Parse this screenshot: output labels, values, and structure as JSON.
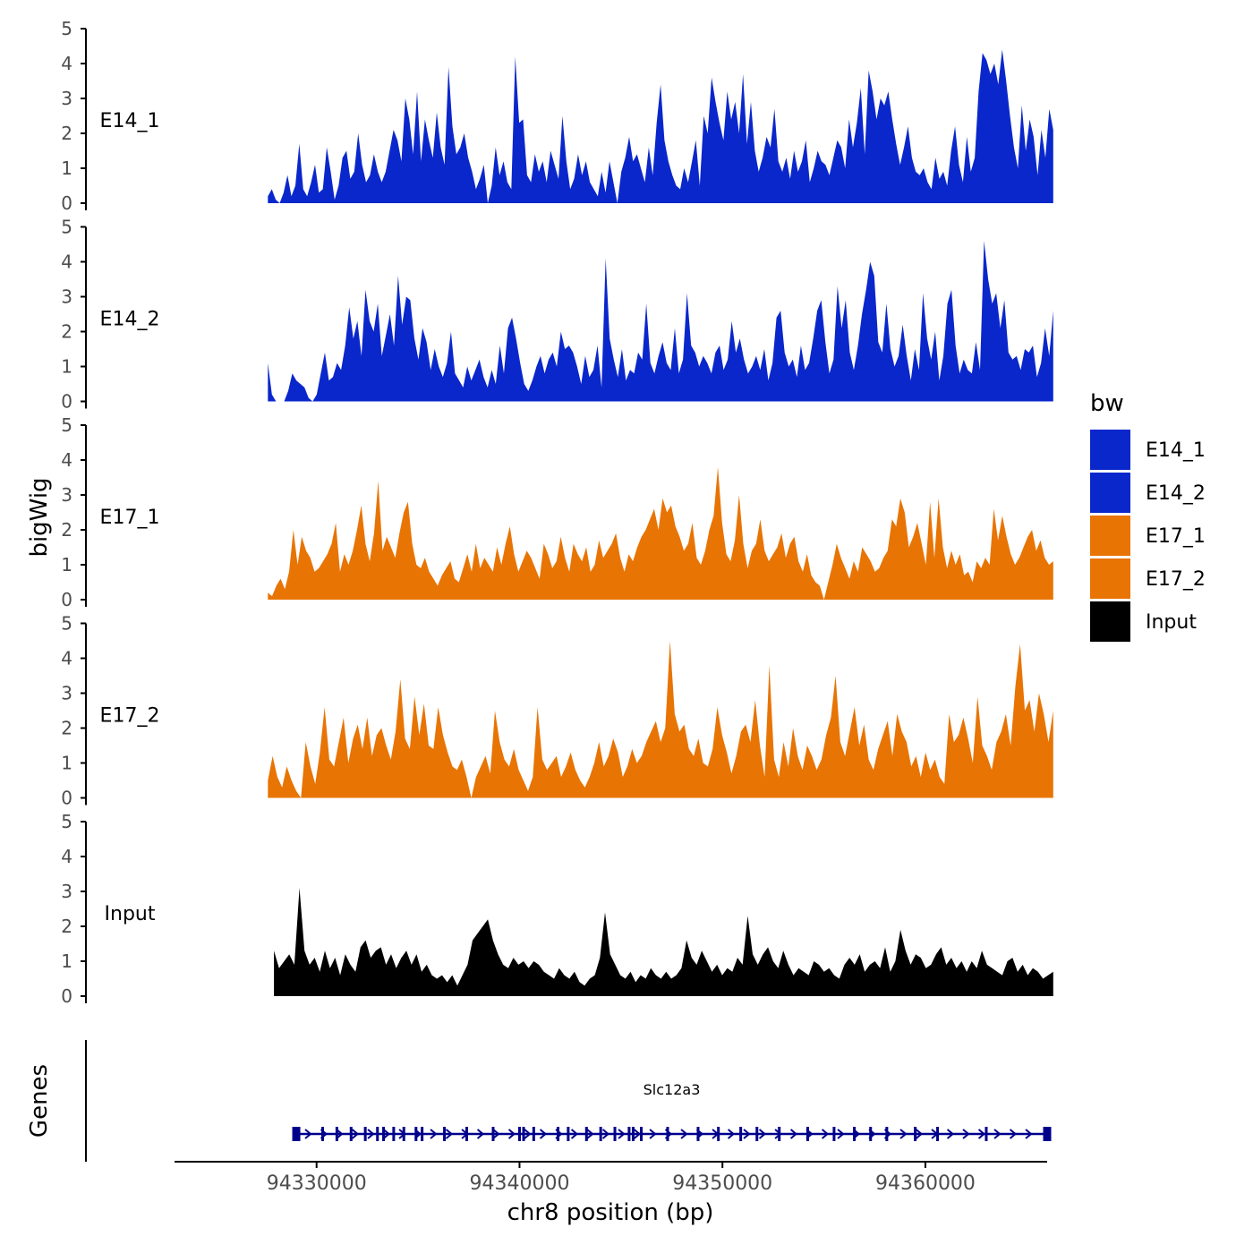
{
  "chart_data": {
    "type": "area",
    "title": "",
    "ylabel": "bigWig",
    "xlabel": "chr8 position (bp)",
    "xlim": [
      94323000,
      94366000
    ],
    "ylim": [
      0,
      5
    ],
    "y_ticks": [
      "0",
      "1",
      "2",
      "3",
      "4",
      "5"
    ],
    "x_ticks": [
      {
        "value": 94330000,
        "label": "94330000"
      },
      {
        "value": 94340000,
        "label": "94340000"
      },
      {
        "value": 94350000,
        "label": "94350000"
      },
      {
        "value": 94360000,
        "label": "94360000"
      }
    ],
    "colors": {
      "E14": "#0A27CC",
      "E17": "#E87404",
      "Input": "#000000",
      "gene": "#00008B",
      "axis": "#000000",
      "tick_label": "#4D4D4D"
    },
    "legend": {
      "title": "bw",
      "position": "right",
      "entries": [
        {
          "label": "E14_1",
          "color": "#0A27CC"
        },
        {
          "label": "E14_2",
          "color": "#0A27CC"
        },
        {
          "label": "E17_1",
          "color": "#E87404"
        },
        {
          "label": "E17_2",
          "color": "#E87404"
        },
        {
          "label": "Input",
          "color": "#000000"
        }
      ]
    },
    "tracks": [
      {
        "name": "E14_1",
        "color": "#0A27CC",
        "x_start": 94327600,
        "x_end": 94366300,
        "values": [
          0.2,
          0.4,
          0.1,
          0.0,
          0.3,
          0.8,
          0.2,
          0.5,
          1.7,
          0.4,
          0.2,
          0.6,
          1.1,
          0.3,
          0.4,
          1.6,
          0.9,
          0.1,
          0.5,
          1.3,
          1.5,
          0.7,
          0.9,
          2.0,
          1.1,
          0.6,
          0.8,
          1.4,
          0.9,
          0.6,
          0.9,
          1.5,
          2.1,
          1.8,
          1.2,
          3.0,
          2.4,
          1.4,
          3.2,
          1.2,
          2.4,
          1.8,
          1.3,
          2.6,
          1.6,
          1.1,
          3.9,
          2.2,
          1.4,
          1.6,
          2.0,
          1.3,
          0.9,
          0.4,
          0.7,
          1.1,
          0.0,
          0.5,
          1.6,
          0.8,
          1.2,
          0.6,
          0.4,
          4.2,
          2.3,
          2.4,
          0.8,
          0.6,
          1.4,
          0.9,
          1.2,
          0.6,
          1.5,
          1.1,
          0.7,
          2.5,
          1.2,
          0.4,
          0.7,
          1.4,
          0.8,
          1.2,
          0.6,
          0.4,
          0.2,
          0.9,
          0.3,
          1.2,
          0.6,
          0.0,
          0.9,
          1.3,
          1.9,
          1.2,
          1.4,
          1.0,
          0.6,
          1.6,
          0.8,
          2.3,
          3.4,
          1.8,
          1.2,
          0.8,
          0.5,
          0.4,
          1.0,
          0.6,
          1.2,
          1.8,
          0.5,
          2.5,
          2.0,
          3.6,
          2.9,
          2.3,
          1.8,
          3.2,
          2.4,
          2.9,
          2.0,
          3.7,
          1.7,
          2.9,
          1.5,
          0.9,
          1.3,
          1.9,
          1.6,
          2.7,
          1.2,
          0.9,
          1.3,
          0.7,
          1.5,
          0.9,
          1.2,
          1.8,
          0.6,
          1.0,
          1.5,
          1.2,
          1.1,
          0.8,
          1.3,
          1.8,
          1.6,
          1.0,
          2.4,
          1.6,
          2.3,
          3.3,
          1.4,
          3.8,
          3.2,
          2.4,
          3.0,
          2.8,
          3.2,
          2.4,
          1.7,
          1.1,
          1.6,
          2.2,
          1.3,
          0.9,
          0.8,
          1.0,
          0.6,
          0.4,
          1.3,
          0.7,
          0.9,
          0.5,
          1.5,
          2.2,
          1.1,
          0.6,
          1.9,
          0.9,
          1.3,
          3.2,
          4.3,
          4.1,
          3.7,
          4.0,
          3.4,
          4.4,
          3.5,
          2.5,
          1.6,
          1.0,
          2.8,
          1.5,
          2.4,
          1.9,
          0.8,
          2.1,
          1.3,
          2.7,
          2.1
        ]
      },
      {
        "name": "E14_2",
        "color": "#0A27CC",
        "x_start": 94327600,
        "x_end": 94366300,
        "values": [
          1.1,
          0.2,
          0.0,
          0.0,
          0.0,
          0.3,
          0.8,
          0.6,
          0.5,
          0.4,
          0.1,
          0.0,
          0.2,
          0.8,
          1.4,
          0.6,
          0.7,
          1.1,
          0.9,
          1.6,
          2.7,
          1.8,
          2.3,
          1.3,
          3.2,
          2.3,
          2.0,
          2.8,
          1.3,
          1.9,
          2.5,
          1.6,
          3.6,
          2.2,
          3.0,
          2.9,
          1.8,
          1.2,
          2.1,
          1.7,
          0.9,
          1.5,
          1.0,
          0.7,
          1.1,
          2.0,
          0.8,
          0.6,
          0.4,
          1.0,
          0.6,
          0.9,
          1.2,
          0.7,
          0.4,
          0.9,
          0.5,
          1.6,
          0.8,
          2.1,
          2.4,
          1.8,
          1.1,
          0.5,
          0.3,
          0.6,
          1.0,
          1.3,
          0.8,
          1.2,
          1.4,
          1.0,
          2.0,
          1.5,
          1.6,
          1.4,
          1.0,
          0.5,
          1.3,
          0.7,
          0.9,
          1.6,
          0.4,
          4.1,
          1.8,
          1.2,
          0.7,
          1.5,
          0.6,
          0.9,
          0.8,
          1.4,
          1.2,
          2.8,
          1.1,
          0.8,
          1.3,
          1.7,
          1.1,
          0.9,
          2.1,
          0.8,
          1.2,
          3.1,
          1.6,
          1.4,
          1.0,
          1.3,
          1.1,
          0.8,
          1.4,
          1.6,
          0.9,
          1.2,
          2.3,
          1.4,
          1.8,
          1.2,
          0.8,
          1.0,
          1.3,
          0.9,
          1.5,
          0.6,
          1.1,
          2.4,
          2.6,
          1.4,
          1.0,
          1.2,
          0.7,
          1.6,
          0.9,
          1.1,
          1.8,
          2.6,
          2.9,
          1.7,
          0.8,
          1.2,
          3.3,
          2.1,
          2.9,
          1.4,
          0.9,
          1.6,
          2.5,
          3.2,
          4.0,
          3.6,
          1.7,
          1.4,
          2.8,
          1.5,
          1.0,
          1.3,
          2.2,
          1.3,
          0.6,
          1.5,
          0.9,
          3.1,
          1.8,
          1.2,
          2.0,
          0.6,
          1.3,
          2.8,
          3.2,
          1.6,
          0.8,
          1.2,
          0.9,
          0.8,
          1.7,
          0.9,
          4.6,
          3.5,
          2.8,
          3.1,
          2.1,
          2.9,
          1.4,
          1.2,
          1.3,
          0.9,
          1.5,
          1.4,
          1.6,
          0.7,
          1.1,
          2.1,
          1.3,
          2.6
        ]
      },
      {
        "name": "E17_1",
        "color": "#E87404",
        "x_start": 94327600,
        "x_end": 94366300,
        "values": [
          0.2,
          0.1,
          0.4,
          0.6,
          0.3,
          0.8,
          2.0,
          1.0,
          1.8,
          1.4,
          1.2,
          0.8,
          0.9,
          1.1,
          1.3,
          1.6,
          2.2,
          0.8,
          1.3,
          1.0,
          1.4,
          2.0,
          2.7,
          1.6,
          1.1,
          1.9,
          3.4,
          1.4,
          1.8,
          1.5,
          1.2,
          1.9,
          2.5,
          2.8,
          1.6,
          1.0,
          0.9,
          1.2,
          0.8,
          0.6,
          0.4,
          0.7,
          0.9,
          1.1,
          0.6,
          0.5,
          0.9,
          1.3,
          0.8,
          1.6,
          0.9,
          1.2,
          1.0,
          0.8,
          1.5,
          1.0,
          1.6,
          2.1,
          1.3,
          0.8,
          1.1,
          1.4,
          1.2,
          0.9,
          0.6,
          1.6,
          1.3,
          0.9,
          1.1,
          1.8,
          1.2,
          0.8,
          1.6,
          1.3,
          1.1,
          1.5,
          0.8,
          1.0,
          1.7,
          1.2,
          1.4,
          1.6,
          1.9,
          1.2,
          0.8,
          1.3,
          1.1,
          1.5,
          1.8,
          2.0,
          2.3,
          2.6,
          2.0,
          2.9,
          2.5,
          2.7,
          2.1,
          1.8,
          1.4,
          1.6,
          2.2,
          1.2,
          1.0,
          1.4,
          2.0,
          2.4,
          3.8,
          2.2,
          1.3,
          1.1,
          1.7,
          3.0,
          1.6,
          0.9,
          1.4,
          1.6,
          2.3,
          1.4,
          1.1,
          1.3,
          1.5,
          1.9,
          1.2,
          1.6,
          1.8,
          1.1,
          0.8,
          1.3,
          0.7,
          0.5,
          0.4,
          0.0,
          0.5,
          1.0,
          1.6,
          1.2,
          0.9,
          0.6,
          1.1,
          0.8,
          1.5,
          1.3,
          1.1,
          0.8,
          0.9,
          1.2,
          1.4,
          2.3,
          2.1,
          2.9,
          2.5,
          1.5,
          1.8,
          2.2,
          1.6,
          1.0,
          2.8,
          1.2,
          2.9,
          1.5,
          0.9,
          1.4,
          1.0,
          1.3,
          0.7,
          0.8,
          0.5,
          1.1,
          0.9,
          1.2,
          1.0,
          2.6,
          1.7,
          2.4,
          1.8,
          1.3,
          1.0,
          1.2,
          1.5,
          1.8,
          2.0,
          1.4,
          1.7,
          1.2,
          1.0,
          1.1
        ]
      },
      {
        "name": "E17_2",
        "color": "#E87404",
        "x_start": 94327600,
        "x_end": 94366300,
        "values": [
          0.5,
          1.2,
          0.6,
          0.3,
          0.9,
          0.5,
          0.2,
          0.0,
          1.6,
          0.9,
          0.4,
          1.3,
          2.6,
          1.1,
          0.9,
          1.6,
          2.3,
          1.0,
          1.7,
          2.1,
          1.4,
          2.3,
          1.2,
          1.8,
          2.0,
          1.5,
          1.1,
          1.9,
          3.4,
          1.7,
          1.4,
          2.9,
          1.8,
          2.7,
          1.5,
          1.4,
          2.6,
          1.8,
          1.3,
          0.9,
          0.8,
          1.1,
          0.6,
          0.0,
          0.6,
          0.9,
          1.2,
          0.7,
          2.5,
          1.6,
          1.1,
          0.9,
          1.4,
          0.8,
          0.5,
          0.2,
          0.6,
          2.6,
          1.1,
          0.8,
          1.0,
          1.2,
          0.6,
          0.9,
          1.3,
          0.8,
          0.5,
          0.3,
          0.6,
          1.0,
          1.6,
          0.9,
          1.2,
          1.7,
          1.3,
          0.6,
          0.9,
          1.4,
          1.0,
          1.2,
          1.6,
          1.9,
          2.2,
          1.6,
          2.0,
          4.5,
          2.4,
          1.9,
          2.1,
          1.4,
          1.2,
          1.7,
          1.0,
          0.9,
          1.4,
          2.6,
          1.8,
          1.3,
          0.7,
          1.2,
          1.9,
          2.1,
          1.6,
          2.8,
          1.5,
          0.6,
          3.8,
          1.1,
          0.6,
          1.6,
          0.9,
          2.0,
          1.2,
          0.8,
          1.5,
          1.2,
          0.8,
          1.1,
          1.8,
          2.3,
          3.5,
          1.6,
          1.2,
          1.9,
          2.6,
          1.5,
          2.1,
          1.1,
          0.8,
          1.4,
          1.8,
          2.2,
          1.2,
          2.4,
          1.9,
          1.6,
          0.9,
          1.2,
          0.6,
          1.3,
          0.8,
          1.1,
          0.6,
          0.4,
          2.4,
          1.6,
          1.8,
          2.3,
          1.7,
          1.0,
          2.9,
          1.5,
          1.2,
          0.8,
          1.6,
          1.9,
          2.4,
          1.5,
          3.2,
          4.4,
          2.5,
          2.8,
          1.9,
          3.0,
          2.4,
          1.6,
          2.5
        ]
      },
      {
        "name": "Input",
        "color": "#000000",
        "x_start": 94327900,
        "x_end": 94366300,
        "values": [
          1.3,
          0.8,
          1.0,
          1.2,
          0.9,
          3.1,
          1.3,
          0.9,
          1.1,
          0.7,
          1.3,
          0.8,
          1.1,
          0.6,
          1.2,
          0.9,
          0.7,
          1.4,
          1.6,
          1.1,
          1.3,
          1.4,
          0.9,
          1.2,
          0.8,
          1.1,
          1.3,
          0.9,
          1.2,
          0.7,
          0.9,
          0.6,
          0.5,
          0.6,
          0.4,
          0.6,
          0.3,
          0.6,
          0.9,
          1.6,
          1.8,
          2.0,
          2.2,
          1.6,
          1.2,
          0.9,
          0.8,
          1.1,
          0.9,
          1.0,
          0.8,
          1.0,
          0.9,
          0.7,
          0.6,
          0.5,
          0.8,
          0.6,
          0.5,
          0.7,
          0.4,
          0.3,
          0.5,
          0.6,
          1.1,
          2.4,
          1.2,
          0.9,
          0.6,
          0.5,
          0.7,
          0.4,
          0.6,
          0.5,
          0.8,
          0.6,
          0.5,
          0.7,
          0.5,
          0.6,
          0.8,
          1.6,
          1.1,
          0.9,
          1.3,
          1.0,
          0.7,
          0.9,
          0.6,
          0.8,
          0.7,
          1.1,
          0.9,
          2.3,
          1.2,
          0.9,
          1.2,
          1.4,
          1.0,
          0.8,
          1.3,
          0.9,
          0.6,
          0.8,
          0.7,
          0.6,
          1.0,
          0.9,
          0.7,
          0.8,
          0.6,
          0.5,
          0.9,
          1.1,
          0.9,
          1.2,
          0.7,
          0.9,
          1.0,
          0.8,
          1.4,
          0.7,
          1.0,
          1.9,
          1.3,
          0.9,
          1.2,
          1.1,
          0.8,
          0.9,
          1.2,
          1.4,
          0.9,
          1.1,
          0.8,
          1.0,
          0.7,
          1.0,
          0.8,
          1.3,
          0.9,
          0.8,
          0.7,
          0.6,
          1.0,
          1.1,
          0.7,
          0.9,
          0.6,
          0.8,
          0.7,
          0.5,
          0.6,
          0.7
        ]
      }
    ],
    "genes": {
      "label": "Genes",
      "items": [
        {
          "name": "Slc12a3",
          "start": 94329000,
          "end": 94366000,
          "strand": "+",
          "color": "#00008B",
          "exons": [
            94329000,
            94330300,
            94331000,
            94331700,
            94332400,
            94333000,
            94333300,
            94333800,
            94334300,
            94334900,
            94335200,
            94336300,
            94337400,
            94338700,
            94340000,
            94340200,
            94340700,
            94341900,
            94342400,
            94343300,
            94344000,
            94344700,
            94345400,
            94345600,
            94346000,
            94347300,
            94348800,
            94349800,
            94350900,
            94351700,
            94352800,
            94354200,
            94355500,
            94356500,
            94357300,
            94358100,
            94359500,
            94360600,
            94363000,
            94366000
          ]
        }
      ]
    }
  }
}
